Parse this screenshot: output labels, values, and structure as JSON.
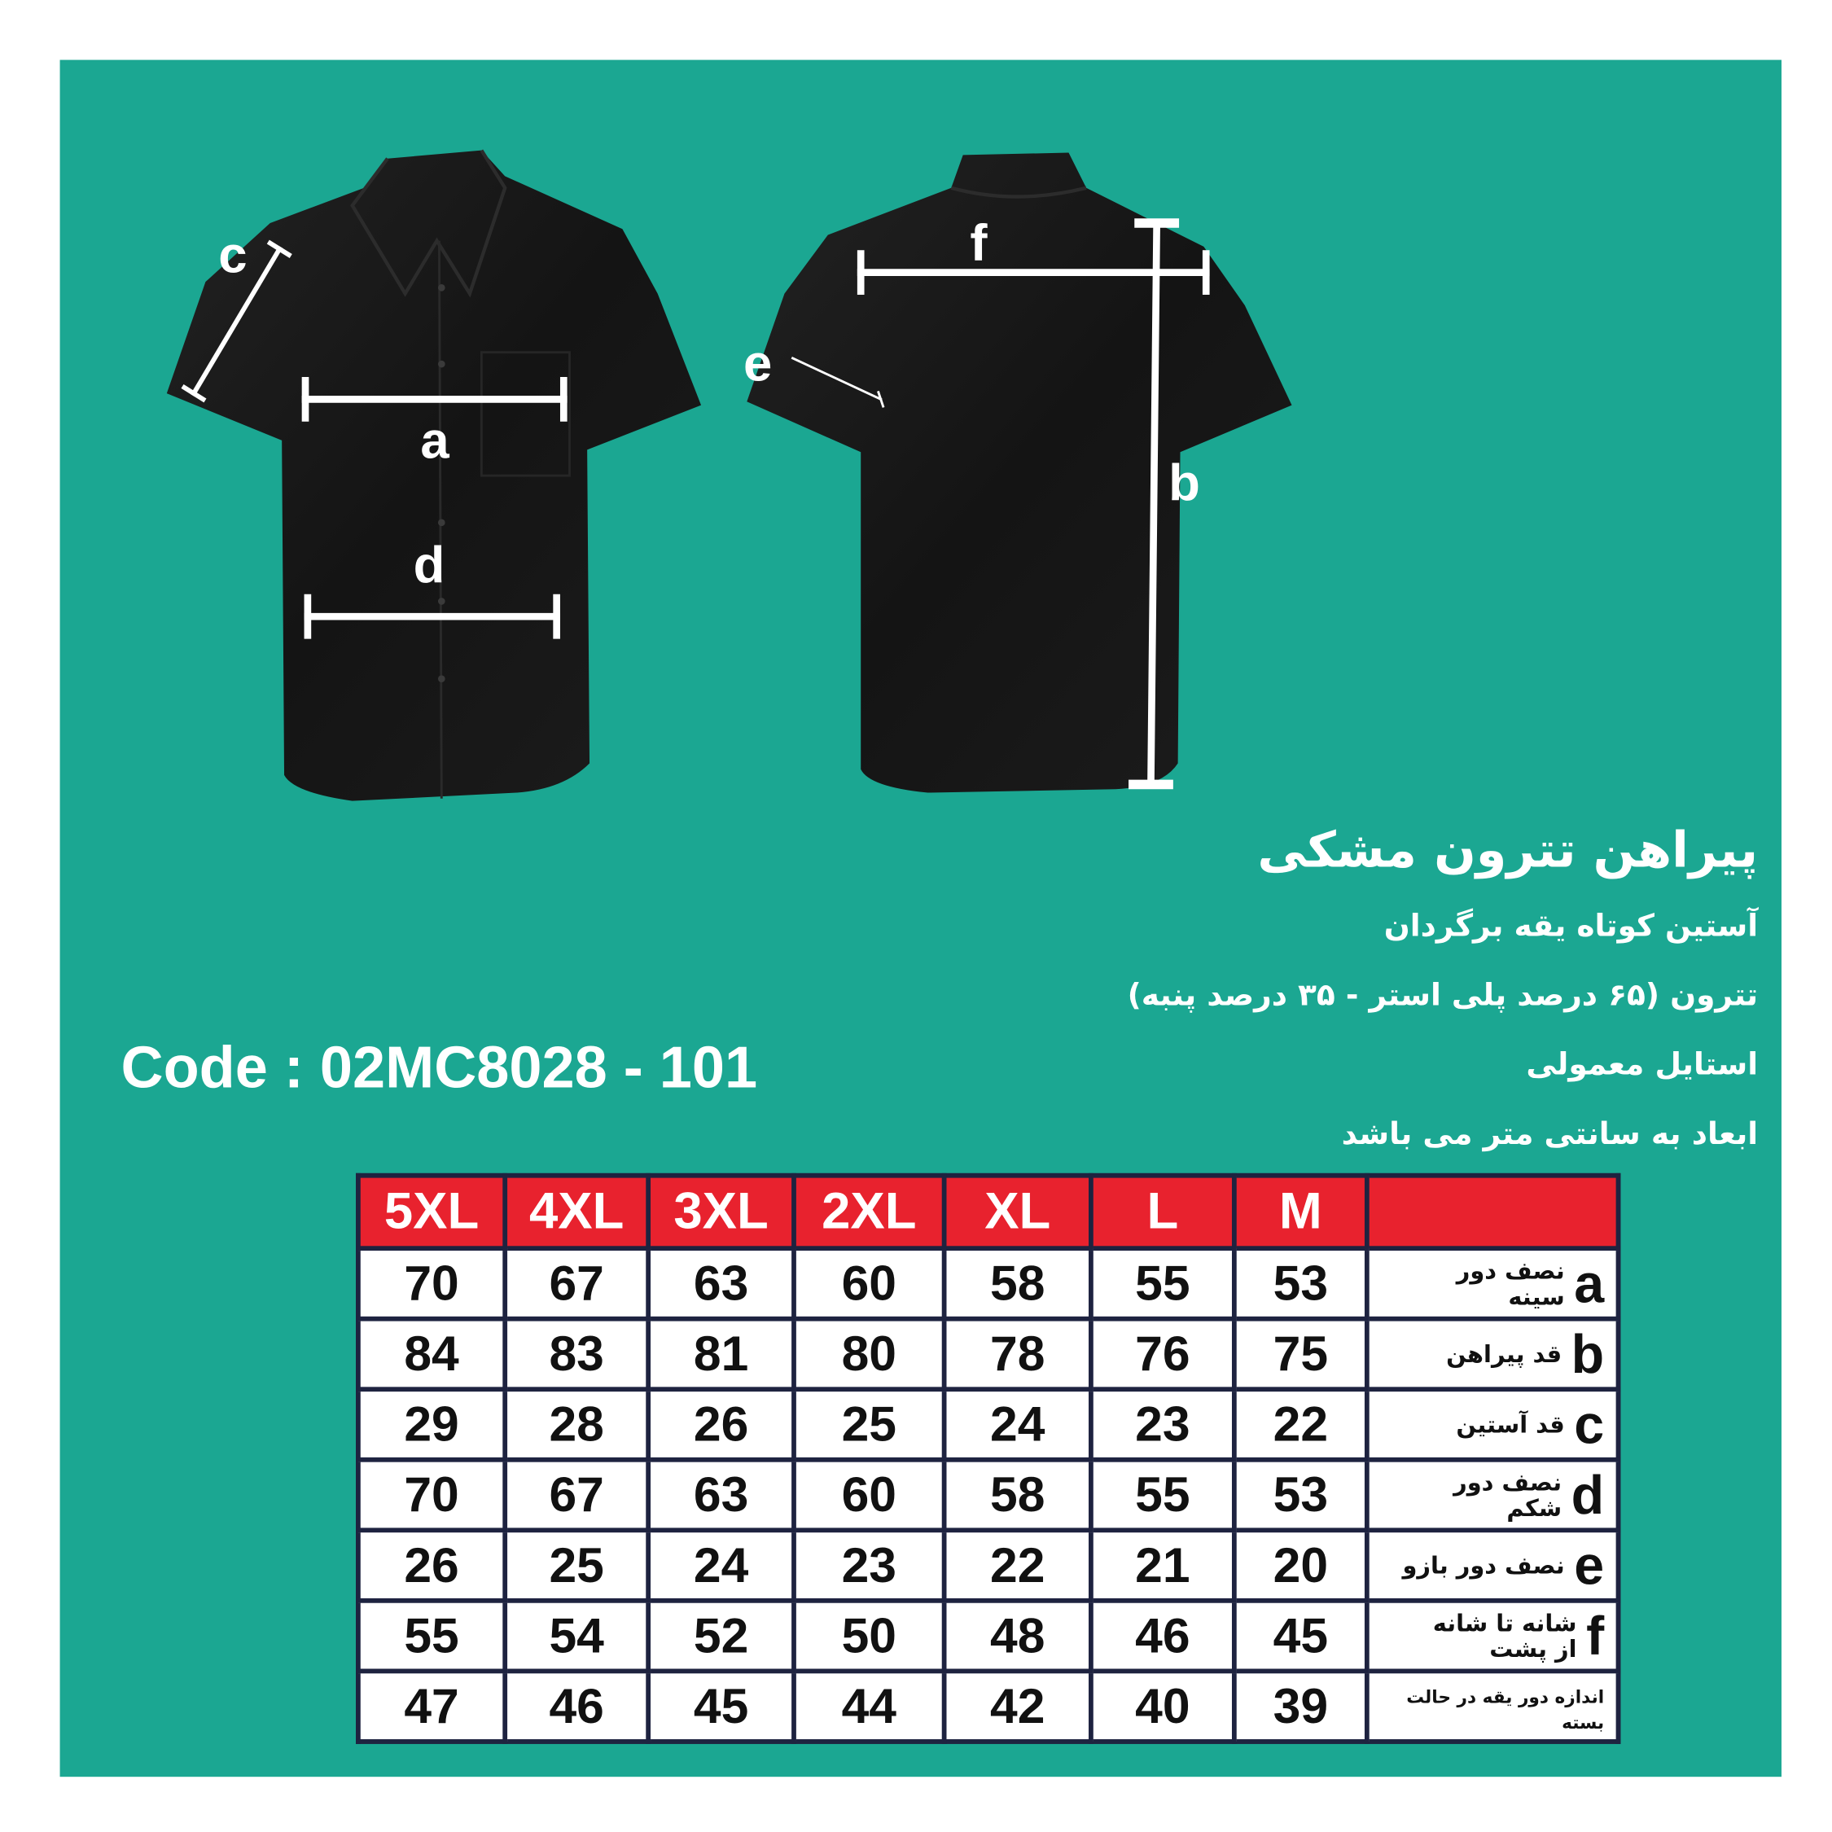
{
  "product": {
    "title": "پیراهن تترون مشکی",
    "details": [
      "آستین کوتاه یقه برگردان",
      "تترون (۶۵ درصد پلی استر - ۳۵ درصد پنبه)",
      "استایل معمولی",
      "ابعاد به سانتی متر می باشد"
    ],
    "code": "Code : 02MC8028 - 101"
  },
  "diagram_labels": {
    "a": "a",
    "b": "b",
    "c": "c",
    "d": "d",
    "e": "e",
    "f": "f"
  },
  "colors": {
    "background": "#1ba792",
    "header": "#e8222e",
    "border": "#1e2340",
    "shirt": "#151515"
  },
  "size_table": {
    "sizes": [
      "5XL",
      "4XL",
      "3XL",
      "2XL",
      "XL",
      "L",
      "M"
    ],
    "rows": [
      {
        "letter": "a",
        "label": "نصف دور سینه",
        "values": [
          "70",
          "67",
          "63",
          "60",
          "58",
          "55",
          "53"
        ]
      },
      {
        "letter": "b",
        "label": "قد پیراهن",
        "values": [
          "84",
          "83",
          "81",
          "80",
          "78",
          "76",
          "75"
        ]
      },
      {
        "letter": "c",
        "label": "قد آستین",
        "values": [
          "29",
          "28",
          "26",
          "25",
          "24",
          "23",
          "22"
        ]
      },
      {
        "letter": "d",
        "label": "نصف دور شکم",
        "values": [
          "70",
          "67",
          "63",
          "60",
          "58",
          "55",
          "53"
        ]
      },
      {
        "letter": "e",
        "label": "نصف دور بازو",
        "values": [
          "26",
          "25",
          "24",
          "23",
          "22",
          "21",
          "20"
        ]
      },
      {
        "letter": "f",
        "label": "شانه تا شانه از پشت",
        "values": [
          "55",
          "54",
          "52",
          "50",
          "48",
          "46",
          "45"
        ]
      },
      {
        "letter": "",
        "label": "اندازه دور یقه در حالت بسته",
        "values": [
          "47",
          "46",
          "45",
          "44",
          "42",
          "40",
          "39"
        ]
      }
    ]
  }
}
